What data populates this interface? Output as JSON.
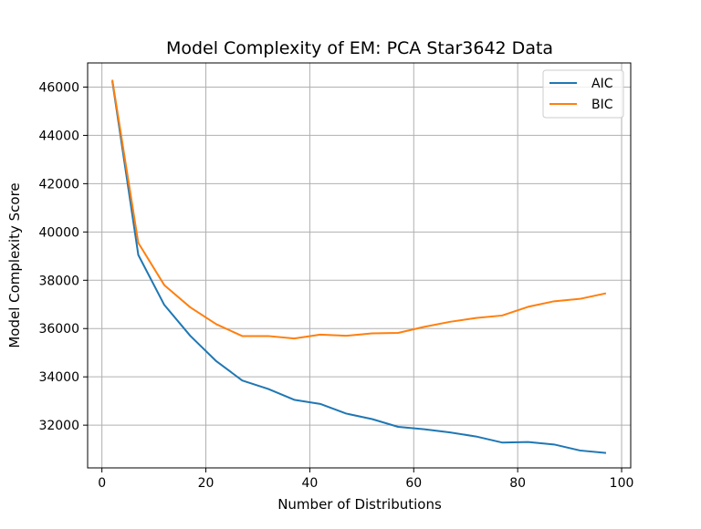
{
  "chart_data": {
    "type": "line",
    "title": "Model Complexity of EM: PCA Star3642 Data",
    "xlabel": "Number of Distributions",
    "ylabel": "Model Complexity Score",
    "xlim": [
      -2.75,
      101.75
    ],
    "ylim": [
      30230,
      47000
    ],
    "xticks": [
      0,
      20,
      40,
      60,
      80,
      100
    ],
    "yticks": [
      32000,
      34000,
      36000,
      38000,
      40000,
      42000,
      44000,
      46000
    ],
    "grid": true,
    "legend_position": "top-right",
    "x": [
      2,
      7,
      12,
      17,
      22,
      27,
      32,
      37,
      42,
      47,
      52,
      57,
      62,
      67,
      72,
      77,
      82,
      87,
      92,
      97
    ],
    "series": [
      {
        "name": "AIC",
        "color": "#1f77b4",
        "values": [
          46250,
          39050,
          36980,
          35700,
          34650,
          33850,
          33500,
          33050,
          32880,
          32480,
          32250,
          31930,
          31830,
          31700,
          31530,
          31280,
          31300,
          31200,
          30950,
          30850
        ]
      },
      {
        "name": "BIC",
        "color": "#ff7f0e",
        "values": [
          46300,
          39550,
          37800,
          36880,
          36180,
          35690,
          35690,
          35590,
          35750,
          35700,
          35800,
          35820,
          36070,
          36280,
          36440,
          36540,
          36900,
          37130,
          37230,
          37460
        ]
      }
    ]
  }
}
